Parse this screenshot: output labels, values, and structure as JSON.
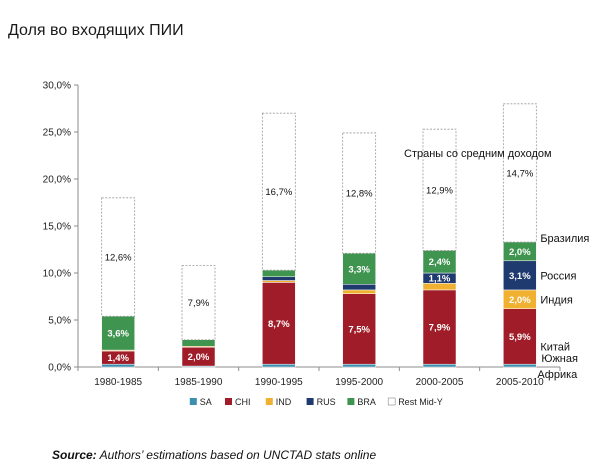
{
  "page_title": "Доля во входящих ПИИ",
  "source": {
    "label": "Source:",
    "text": "Authors’ estimations based on UNCTAD stats online"
  },
  "chart_data": {
    "type": "bar",
    "stacked": true,
    "categories": [
      "1980-1985",
      "1985-1990",
      "1990-1995",
      "1995-2000",
      "2000-2005",
      "2005-2010"
    ],
    "ylim": [
      0,
      30
    ],
    "yticks": [
      "0,0%",
      "5,0%",
      "10,0%",
      "15,0%",
      "20,0%",
      "25,0%",
      "30,0%"
    ],
    "ytick_values": [
      0,
      5,
      10,
      15,
      20,
      25,
      30
    ],
    "grid": false,
    "legend_position": "bottom",
    "series": [
      {
        "name": "SA",
        "color": "#3d8fb0",
        "values": [
          0.3,
          0.1,
          0.3,
          0.3,
          0.3,
          0.3
        ],
        "labels": [
          "",
          "",
          "",
          "",
          "",
          ""
        ]
      },
      {
        "name": "CHI",
        "color": "#a01c28",
        "values": [
          1.4,
          2.0,
          8.7,
          7.5,
          7.9,
          5.9
        ],
        "labels": [
          "1,4%",
          "2,0%",
          "8,7%",
          "7,5%",
          "7,9%",
          "5,9%"
        ]
      },
      {
        "name": "IND",
        "color": "#f0b030",
        "values": [
          0.1,
          0.1,
          0.2,
          0.4,
          0.7,
          2.0
        ],
        "labels": [
          "",
          "",
          "",
          "",
          "",
          "2,0%"
        ]
      },
      {
        "name": "RUS",
        "color": "#1f3a6e",
        "values": [
          0.0,
          0.0,
          0.4,
          0.6,
          1.1,
          3.1
        ],
        "labels": [
          "",
          "",
          "",
          "",
          "1,1%",
          "3,1%"
        ]
      },
      {
        "name": "BRA",
        "color": "#3f9450",
        "values": [
          3.6,
          0.7,
          0.7,
          3.3,
          2.4,
          2.0
        ],
        "labels": [
          "3,6%",
          "",
          "",
          "3,3%",
          "2,4%",
          "2,0%"
        ]
      },
      {
        "name": "Rest Mid-Y",
        "color": "#ffffff",
        "values": [
          12.6,
          7.9,
          16.7,
          12.8,
          12.9,
          14.7
        ],
        "labels": [
          "12,6%",
          "7,9%",
          "16,7%",
          "12,8%",
          "12,9%",
          "14,7%"
        ]
      }
    ],
    "annotations": [
      {
        "text": "Страны со средним доходом",
        "series": "Rest Mid-Y"
      },
      {
        "text": "Бразилия",
        "series": "BRA"
      },
      {
        "text": "Россия",
        "series": "RUS"
      },
      {
        "text": "Индия",
        "series": "IND"
      },
      {
        "text": "Китай",
        "series": "CHI"
      },
      {
        "text": "Южная Африка",
        "series": "SA"
      }
    ]
  }
}
